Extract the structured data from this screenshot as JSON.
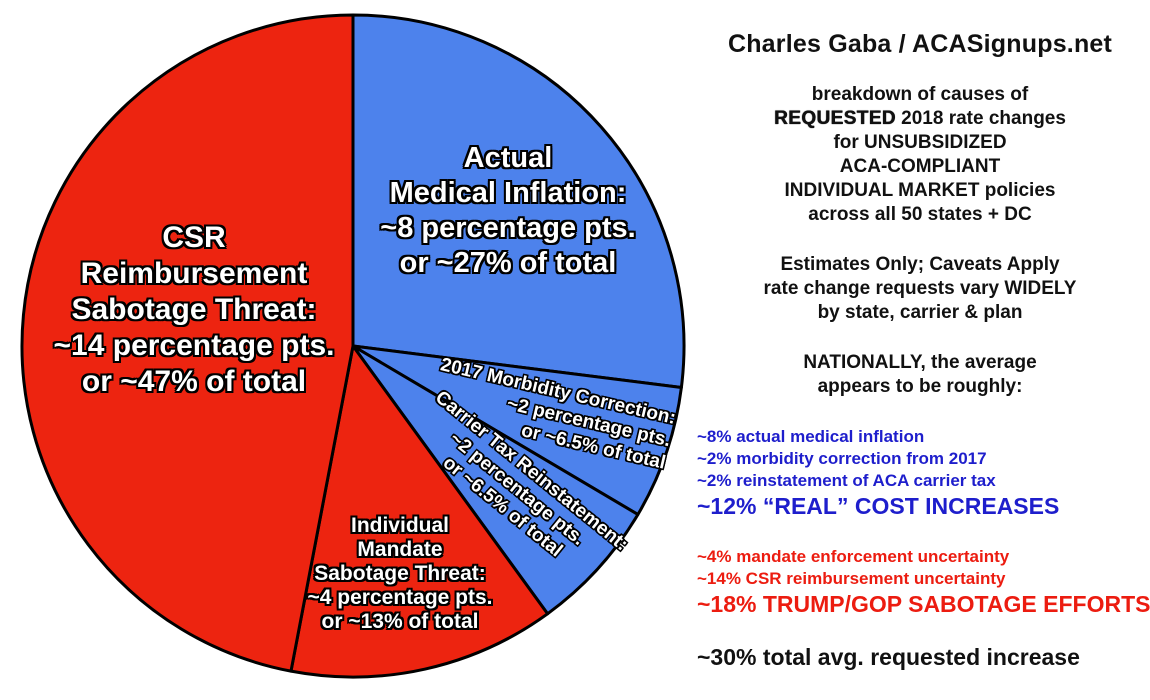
{
  "chart_data": {
    "type": "pie",
    "title": "breakdown of causes of REQUESTED 2018 rate changes",
    "direction": "clockwise",
    "start_angle_deg": 0,
    "outline": {
      "color": "#000000",
      "width": 3
    },
    "slices": [
      {
        "id": "actual-medical-inflation",
        "name": "Actual Medical Inflation",
        "percentage_pts": 8,
        "share_pct": 27,
        "color": "#4D82EC",
        "label_lines": [
          "Actual",
          "Medical Inflation:",
          "~8 percentage pts.",
          "or ~27% of total"
        ]
      },
      {
        "id": "2017-morbidity-correction",
        "name": "2017 Morbidity Correction",
        "percentage_pts": 2,
        "share_pct": 6.5,
        "color": "#4D82EC",
        "label_lines": [
          "2017 Morbidity Correction:",
          "~2 percentage pts.",
          "or ~6.5% of total"
        ]
      },
      {
        "id": "carrier-tax-reinstatement",
        "name": "Carrier Tax Reinstatement",
        "percentage_pts": 2,
        "share_pct": 6.5,
        "color": "#4D82EC",
        "label_lines": [
          "Carrier Tax Reinstatement:",
          "~2 percentage pts.",
          "or ~6.5% of total"
        ]
      },
      {
        "id": "individual-mandate-sabotage-threat",
        "name": "Individual Mandate Sabotage Threat",
        "percentage_pts": 4,
        "share_pct": 13,
        "color": "#ED2410",
        "label_lines": [
          "Individual",
          "Mandate",
          "Sabotage Threat:",
          "~4 percentage pts.",
          "or ~13% of total"
        ]
      },
      {
        "id": "csr-reimbursement-sabotage-threat",
        "name": "CSR Reimbursement Sabotage Threat",
        "percentage_pts": 14,
        "share_pct": 47,
        "color": "#ED2410",
        "label_lines": [
          "CSR",
          "Reimbursement",
          "Sabotage Threat:",
          "~14 percentage pts.",
          "or ~47% of total"
        ]
      }
    ]
  },
  "right_panel": {
    "title": "Charles Gaba / ACASignups.net",
    "desc": {
      "l1": "breakdown of causes of",
      "l2_heavy": "REQUESTED",
      "l2_rest": " 2018 rate changes",
      "l3": "for UNSUBSIDIZED",
      "l4": "ACA-COMPLIANT",
      "l5": "INDIVIDUAL MARKET policies",
      "l6": "across all 50 states + DC"
    },
    "caveats": {
      "l1": "Estimates Only; Caveats Apply",
      "l2": "rate change requests vary WIDELY",
      "l3": "by state, carrier & plan"
    },
    "nationally": {
      "l1": "NATIONALLY, the average",
      "l2": "appears to be roughly:"
    },
    "blue_list": {
      "items": [
        "~8% actual medical inflation",
        "~2% morbidity correction from 2017",
        "~2% reinstatement of ACA carrier tax"
      ],
      "total": "~12% “REAL” COST INCREASES"
    },
    "red_list": {
      "items": [
        "~4% mandate enforcement uncertainty",
        "~14% CSR reimbursement uncertainty"
      ],
      "total": "~18% TRUMP/GOP SABOTAGE EFFORTS"
    },
    "grand_total": "~30% total avg. requested increase"
  },
  "colors": {
    "pie_red": "#ED2410",
    "pie_blue": "#4D82EC",
    "text_blue": "#1E1ECC",
    "text_red": "#EC1C10",
    "text_black": "#111111"
  }
}
